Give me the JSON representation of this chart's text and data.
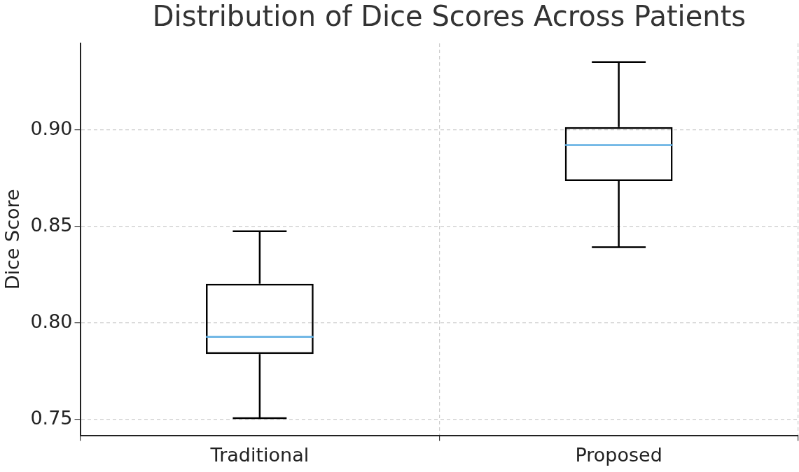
{
  "chart_data": {
    "type": "box",
    "title": "Distribution of Dice Scores Across Patients",
    "ylabel": "Dice Score",
    "categories": [
      "Traditional",
      "Proposed"
    ],
    "boxes": [
      {
        "low": 0.7507,
        "q1": 0.7839,
        "median": 0.7928,
        "q3": 0.8203,
        "high": 0.8475
      },
      {
        "low": 0.8392,
        "q1": 0.8735,
        "median": 0.8921,
        "q3": 0.9014,
        "high": 0.9351
      }
    ],
    "ylim": [
      0.7418,
      0.9448
    ],
    "yticks": [
      {
        "value": 0.75,
        "label": "0.75"
      },
      {
        "value": 0.8,
        "label": "0.80"
      },
      {
        "value": 0.85,
        "label": "0.85"
      },
      {
        "value": 0.9,
        "label": "0.90"
      }
    ],
    "grid": true
  }
}
